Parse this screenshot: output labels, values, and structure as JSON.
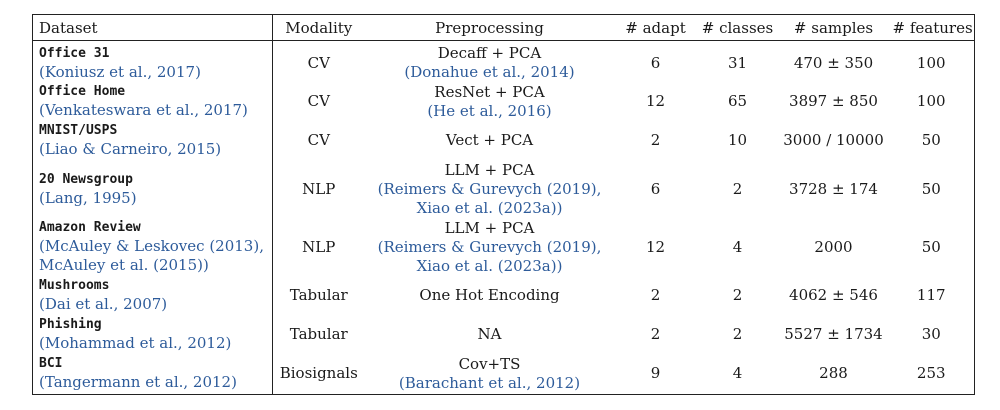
{
  "table": {
    "headers": {
      "dataset": "Dataset",
      "modality": "Modality",
      "preprocessing": "Preprocessing",
      "adapt": "# adapt",
      "classes": "# classes",
      "samples": "# samples",
      "features": "# features"
    },
    "rows": [
      {
        "name": "Office 31",
        "cite": [
          "(Koniusz et al., 2017)"
        ],
        "modality": "CV",
        "prep": [
          "Decaff + PCA",
          "(Donahue et al., 2014)"
        ],
        "adapt": "6",
        "classes": "31",
        "samples": "470 ± 350",
        "features": "100"
      },
      {
        "name": "Office Home",
        "cite": [
          "(Venkateswara et al., 2017)"
        ],
        "modality": "CV",
        "prep": [
          "ResNet + PCA",
          "(He et al., 2016)"
        ],
        "adapt": "12",
        "classes": "65",
        "samples": "3897 ± 850",
        "features": "100"
      },
      {
        "name": "MNIST/USPS",
        "cite": [
          "(Liao & Carneiro, 2015)"
        ],
        "modality": "CV",
        "prep": [
          "Vect + PCA"
        ],
        "adapt": "2",
        "classes": "10",
        "samples": "3000 / 10000",
        "features": "50"
      },
      {
        "name": "20 Newsgroup",
        "cite": [
          "(Lang, 1995)"
        ],
        "modality": "NLP",
        "prep": [
          "LLM + PCA",
          "(Reimers & Gurevych (2019),",
          "Xiao et al. (2023a))"
        ],
        "adapt": "6",
        "classes": "2",
        "samples": "3728 ± 174",
        "features": "50"
      },
      {
        "name": "Amazon Review",
        "cite": [
          "(McAuley & Leskovec (2013),",
          "McAuley et al. (2015))"
        ],
        "modality": "NLP",
        "prep": [
          "LLM + PCA",
          "(Reimers & Gurevych (2019),",
          "Xiao et al. (2023a))"
        ],
        "adapt": "12",
        "classes": "4",
        "samples": "2000",
        "features": "50"
      },
      {
        "name": "Mushrooms",
        "cite": [
          "(Dai et al., 2007)"
        ],
        "modality": "Tabular",
        "prep": [
          "One Hot Encoding"
        ],
        "adapt": "2",
        "classes": "2",
        "samples": "4062 ± 546",
        "features": "117"
      },
      {
        "name": "Phishing",
        "cite": [
          "(Mohammad et al., 2012)"
        ],
        "modality": "Tabular",
        "prep": [
          "NA"
        ],
        "adapt": "2",
        "classes": "2",
        "samples": "5527 ± 1734",
        "features": "30"
      },
      {
        "name": "BCI",
        "cite": [
          "(Tangermann et al., 2012)"
        ],
        "modality": "Biosignals",
        "prep": [
          "Cov+TS",
          "(Barachant et al., 2012)"
        ],
        "adapt": "9",
        "classes": "4",
        "samples": "288",
        "features": "253"
      }
    ]
  }
}
